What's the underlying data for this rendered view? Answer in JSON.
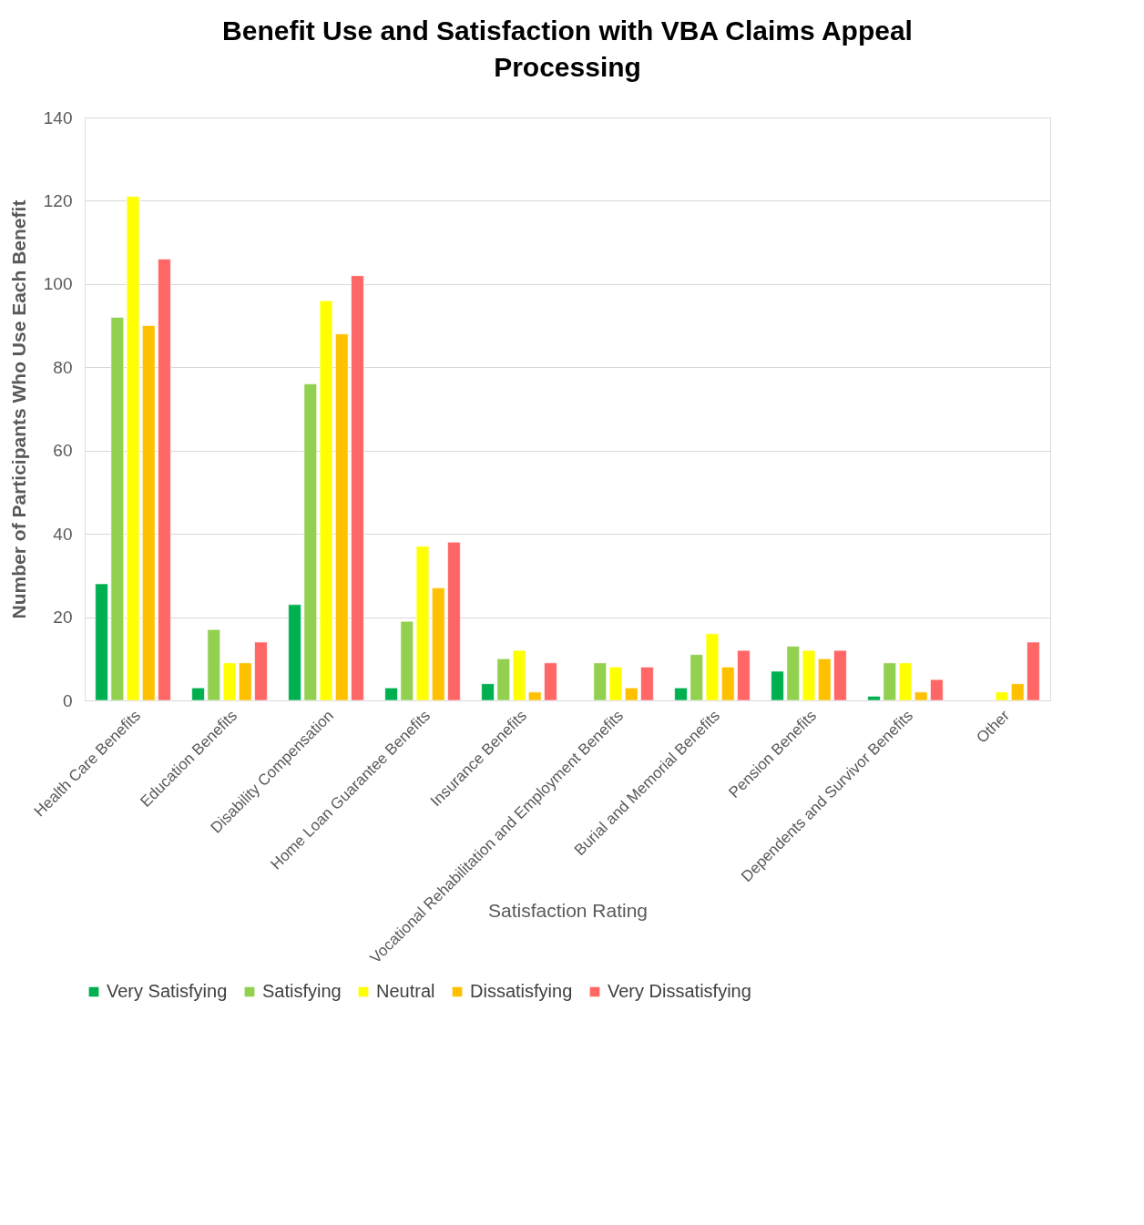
{
  "chart_data": {
    "type": "bar",
    "title": "Benefit Use and Satisfaction with VBA Claims Appeal Processing",
    "xlabel": "Satisfaction Rating",
    "ylabel": "Number of Participants Who Use Each Benefit",
    "categories": [
      "Health Care Benefits",
      "Education Benefits",
      "Disability Compensation",
      "Home Loan Guarantee Benefits",
      "Insurance Benefits",
      "Vocational Rehabilitation and Employment Benefits",
      "Burial and Memorial Benefits",
      "Pension Benefits",
      "Dependents and Survivor Benefits",
      "Other"
    ],
    "series": [
      {
        "name": "Very Satisfying",
        "color": "#00b050",
        "values": [
          28,
          3,
          23,
          3,
          4,
          null,
          3,
          7,
          1,
          null
        ]
      },
      {
        "name": "Satisfying",
        "color": "#92d050",
        "values": [
          92,
          17,
          76,
          19,
          10,
          9,
          11,
          13,
          9,
          null
        ]
      },
      {
        "name": "Neutral",
        "color": "#ffff00",
        "values": [
          121,
          9,
          96,
          37,
          12,
          8,
          16,
          12,
          9,
          2
        ]
      },
      {
        "name": "Dissatisfying",
        "color": "#ffc000",
        "values": [
          90,
          9,
          88,
          27,
          2,
          3,
          8,
          10,
          2,
          4
        ]
      },
      {
        "name": "Very Dissatisfying",
        "color": "#ff6666",
        "values": [
          106,
          14,
          102,
          38,
          9,
          8,
          12,
          12,
          5,
          14
        ]
      }
    ],
    "ylim": [
      0,
      140
    ],
    "yticks": [
      0,
      20,
      40,
      60,
      80,
      100,
      120,
      140
    ],
    "grid": "y",
    "legend": "bottom"
  }
}
